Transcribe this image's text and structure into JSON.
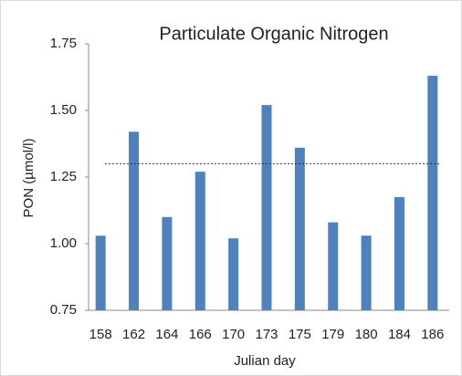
{
  "chart_data": {
    "type": "bar",
    "title": "Particulate Organic Nitrogen",
    "x_label": "Julian day",
    "y_label": "PON (µmol/l)",
    "categories": [
      "158",
      "162",
      "164",
      "166",
      "170",
      "173",
      "175",
      "179",
      "180",
      "184",
      "186"
    ],
    "values": [
      1.03,
      1.42,
      1.1,
      1.27,
      1.02,
      1.52,
      1.36,
      1.08,
      1.03,
      1.175,
      1.63
    ],
    "color": "#4f81bd",
    "ylim": [
      0.75,
      1.75
    ],
    "yticks": [
      {
        "value": 0.75,
        "label": "0.75"
      },
      {
        "value": 1,
        "label": "1.00"
      },
      {
        "value": 1.25,
        "label": "1.25"
      },
      {
        "value": 1.5,
        "label": "1.50"
      },
      {
        "value": 1.75,
        "label": "1.75"
      }
    ],
    "reference_line": 1.3,
    "grid": false
  }
}
